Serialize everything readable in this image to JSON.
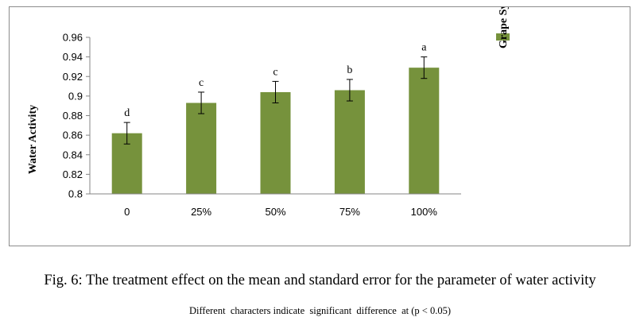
{
  "chart_data": {
    "type": "bar",
    "categories": [
      "0",
      "25%",
      "50%",
      "75%",
      "100%"
    ],
    "series": [
      {
        "name": "Grape Syrup percnet",
        "values": [
          0.862,
          0.893,
          0.904,
          0.906,
          0.929
        ],
        "errors": [
          0.011,
          0.011,
          0.011,
          0.011,
          0.011
        ],
        "letters": [
          "d",
          "c",
          "c",
          "b",
          "a"
        ]
      }
    ],
    "ylabel": "Water Activity",
    "xlabel": "",
    "ylim": [
      0.8,
      0.96
    ],
    "yticks": [
      0.8,
      0.82,
      0.84,
      0.86,
      0.88,
      0.9,
      0.92,
      0.94,
      0.96
    ],
    "grid": false,
    "legend_position": "right",
    "colors": {
      "bar": "#76923c",
      "error_bar": "#000000"
    }
  },
  "caption": "Fig. 6: The treatment effect on the mean and standard error for the parameter of water activity",
  "note": "Different  characters indicate  significant  difference  at (p < 0.05)"
}
